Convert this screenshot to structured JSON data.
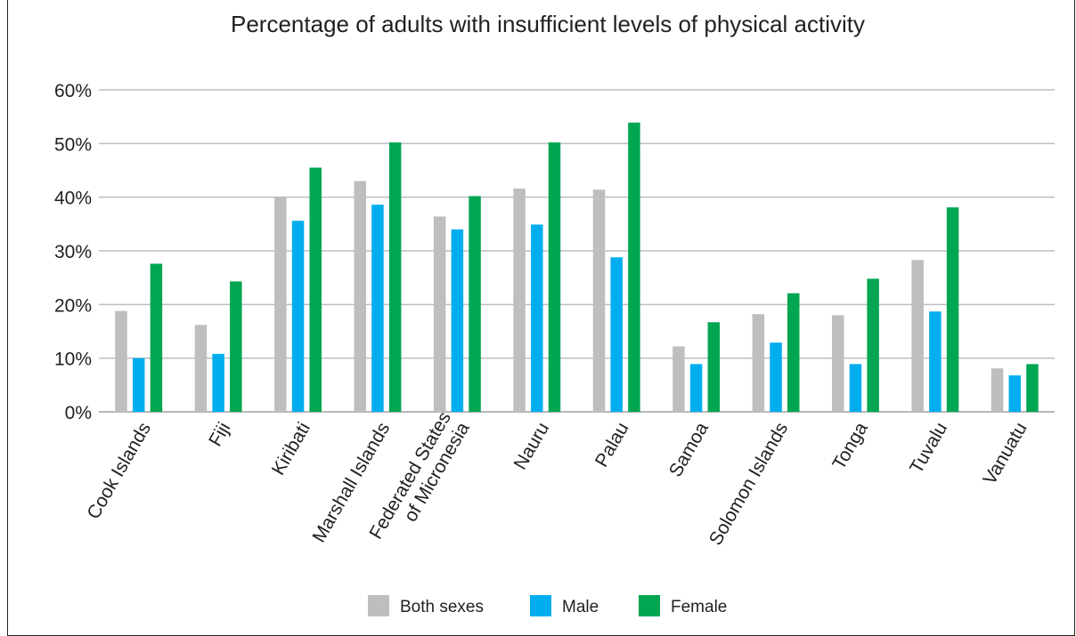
{
  "chart_data": {
    "type": "bar",
    "title": "Percentage of adults with insufficient levels of physical activity",
    "xlabel": "",
    "ylabel": "",
    "ylim": [
      0,
      60
    ],
    "yticks": [
      0,
      10,
      20,
      30,
      40,
      50,
      60
    ],
    "ytick_labels": [
      "0%",
      "10%",
      "20%",
      "30%",
      "40%",
      "50%",
      "60%"
    ],
    "grid": "horizontal",
    "legend_position": "bottom",
    "categories": [
      [
        "Cook Islands"
      ],
      [
        "Fiji"
      ],
      [
        "Kiribati"
      ],
      [
        "Marshall Islands"
      ],
      [
        "Federated States",
        "of Micronesia"
      ],
      [
        "Nauru"
      ],
      [
        "Palau"
      ],
      [
        "Samoa"
      ],
      [
        "Solomon Islands"
      ],
      [
        "Tonga"
      ],
      [
        "Tuvalu"
      ],
      [
        "Vanuatu"
      ]
    ],
    "series": [
      {
        "name": "Both sexes",
        "color": "#bcbec0",
        "values": [
          18.8,
          16.2,
          40.0,
          43.0,
          36.4,
          41.6,
          41.4,
          12.2,
          18.2,
          18.0,
          28.3,
          8.1
        ]
      },
      {
        "name": "Male",
        "color": "#00aeef",
        "values": [
          10.0,
          10.8,
          35.6,
          38.6,
          34.0,
          34.9,
          28.8,
          8.9,
          12.9,
          8.9,
          18.7,
          6.8
        ]
      },
      {
        "name": "Female",
        "color": "#00a651",
        "values": [
          27.6,
          24.3,
          45.5,
          50.2,
          40.2,
          50.2,
          53.9,
          16.7,
          22.1,
          24.8,
          38.1,
          8.9
        ]
      }
    ]
  }
}
